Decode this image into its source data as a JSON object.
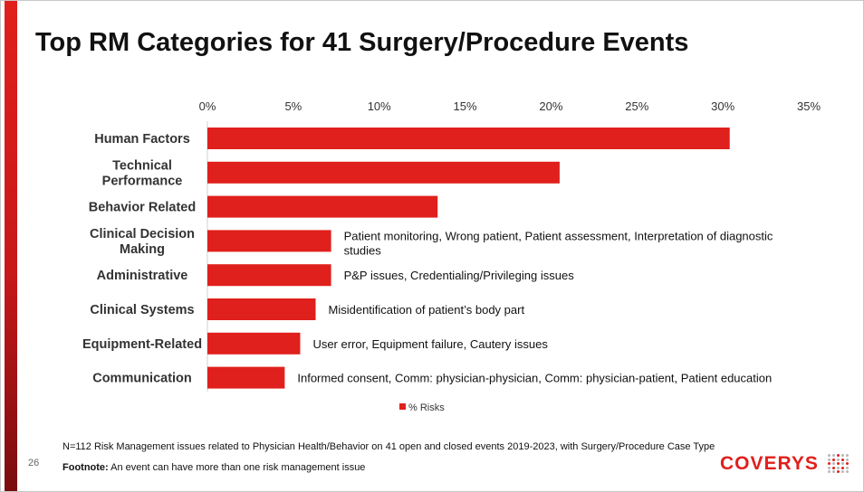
{
  "slide": {
    "title": "Top RM Categories for 41 Surgery/Procedure Events",
    "page_number": "26",
    "note_line1": "N=112 Risk Management issues related to Physician Health/Behavior on 41 open and closed events 2019-2023, with Surgery/Procedure Case Type",
    "footnote_label": "Footnote:",
    "footnote_text": "An event can have more than one risk management issue",
    "logo_text": "COVERYS"
  },
  "colors": {
    "accent": "#e0201c",
    "bar": "#e0201c"
  },
  "chart_data": {
    "type": "bar",
    "orientation": "horizontal",
    "categories": [
      [
        "Human Factors"
      ],
      [
        "Technical",
        "Performance"
      ],
      [
        "Behavior Related"
      ],
      [
        "Clinical Decision",
        "Making"
      ],
      [
        "Administrative"
      ],
      [
        "Clinical Systems"
      ],
      [
        "Equipment-Related"
      ],
      [
        "Communication"
      ]
    ],
    "series": [
      {
        "name": "% Risks",
        "values": [
          30.4,
          20.5,
          13.4,
          7.2,
          7.2,
          6.3,
          5.4,
          4.5
        ]
      }
    ],
    "xlim": [
      0,
      35
    ],
    "xticks": [
      "0%",
      "5%",
      "10%",
      "15%",
      "20%",
      "25%",
      "30%",
      "35%"
    ],
    "xtick_values": [
      0,
      5,
      10,
      15,
      20,
      25,
      30,
      35
    ],
    "annotations": [
      null,
      null,
      null,
      [
        "Patient monitoring, Wrong patient, Patient assessment, Interpretation of diagnostic",
        "studies"
      ],
      [
        "P&P issues, Credentialing/Privileging issues"
      ],
      [
        "Misidentification of patient’s body part"
      ],
      [
        "User error, Equipment failure, Cautery issues"
      ],
      [
        "Informed consent, Comm: physician-physician, Comm: physician-patient, Patient education"
      ]
    ],
    "legend_position": "bottom",
    "grid": false
  }
}
